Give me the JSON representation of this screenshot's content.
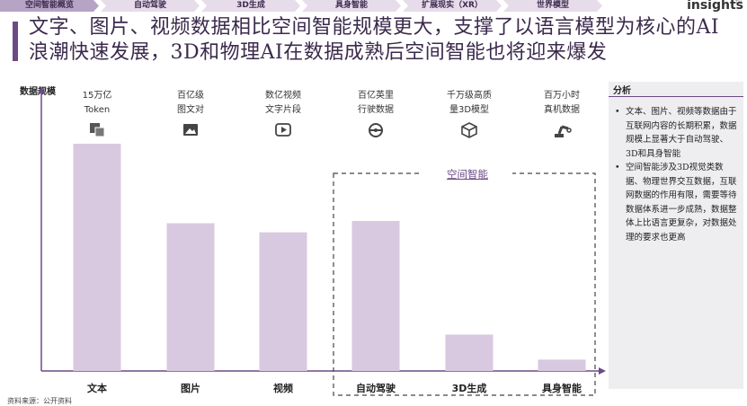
{
  "nav": {
    "tabs": [
      "空间智能概览",
      "自动驾驶",
      "3D生成",
      "具身智能",
      "扩展现实（XR）",
      "世界模型"
    ],
    "active_index": 0
  },
  "logo": {
    "text": "insights",
    "mark": "TH"
  },
  "title": "文字、图片、视频数据相比空间智能规模更大，支撑了以语言模型为核心的AI浪潮快速发展，3D和物理AI在数据成熟后空间智能也将迎来爆发",
  "colors": {
    "accent": "#6b4a86",
    "bar": "#d8c9e0",
    "title": "#3b2a4c"
  },
  "chart_data": {
    "type": "bar",
    "ylabel": "数据规模",
    "categories": [
      "文本",
      "图片",
      "视频",
      "自动驾驶",
      "3D生成",
      "具身智能"
    ],
    "values": [
      100,
      65,
      61,
      66,
      16,
      5
    ],
    "top_labels": [
      [
        "15万亿",
        "Token"
      ],
      [
        "百亿级",
        "图文对"
      ],
      [
        "数亿视频",
        "文字片段"
      ],
      [
        "百亿英里",
        "行驶数据"
      ],
      [
        "千万级高质",
        "量3D模型"
      ],
      [
        "百万小时",
        "真机数据"
      ]
    ],
    "icons": [
      "translate-icon",
      "image-icon",
      "video-play-icon",
      "steering-wheel-icon",
      "cube-icon",
      "robot-arm-icon"
    ],
    "group_label": "空间智能",
    "grid": false
  },
  "sidebar": {
    "title": "分析",
    "bullets": [
      "文本、图片、视频等数据由于互联网内容的长期积累，数据规模上显著大于自动驾驶、3D和具身智能",
      "空间智能涉及3D视觉类数据、物理世界交互数据，互联网数据的作用有限，需要等待数据体系进一步成熟，数据整体上比语言更复杂，对数据处理的要求也更高"
    ]
  },
  "footnote": "资料来源：公开资料"
}
